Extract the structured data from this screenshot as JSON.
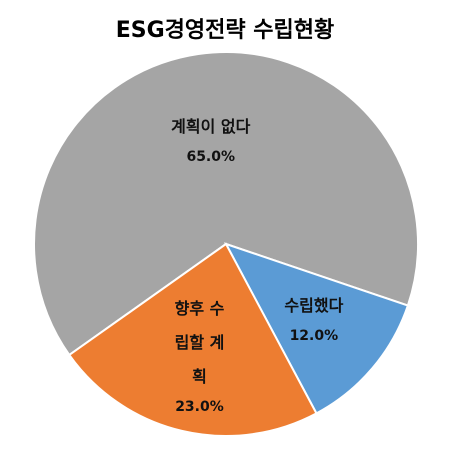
{
  "chart_data": {
    "type": "pie",
    "title": "ESG경영전략 수립현황",
    "categories": [
      "계획이 없다",
      "수립했다",
      "향후 수립할 계획"
    ],
    "values": [
      65,
      12,
      23
    ],
    "value_labels": [
      "65.0%",
      "12.0%",
      "23.0%"
    ],
    "colors": [
      "#a5a5a5",
      "#5b9bd5",
      "#ed7d31"
    ]
  }
}
